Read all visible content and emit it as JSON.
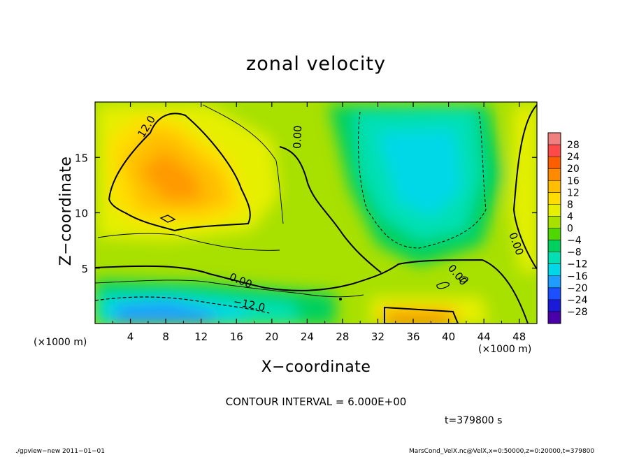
{
  "chart_data": {
    "type": "heatmap",
    "title": "zonal velocity",
    "xlabel": "X−coordinate",
    "ylabel": "Z−coordinate",
    "x_unit": "(×1000 m)",
    "xlim": [
      0,
      50
    ],
    "ylim": [
      0,
      20
    ],
    "x_ticks": [
      "4",
      "8",
      "12",
      "16",
      "20",
      "24",
      "28",
      "32",
      "36",
      "40",
      "44",
      "48"
    ],
    "y_ticks": [
      "5",
      "10",
      "15"
    ],
    "colorbar": {
      "labels": [
        "28",
        "24",
        "20",
        "16",
        "12",
        "8",
        "4",
        "0",
        "−4",
        "−8",
        "−12",
        "−16",
        "−20",
        "−24",
        "−28"
      ],
      "colors": [
        "#f08080",
        "#ff4a4a",
        "#ff5e00",
        "#ff8a00",
        "#ffbe00",
        "#ffdd00",
        "#e6ef00",
        "#a8e000",
        "#4fd800",
        "#00d05e",
        "#00e0b4",
        "#00d8e8",
        "#1e9cff",
        "#1a50ff",
        "#1a1ad8",
        "#4a00a8"
      ]
    },
    "contour_labels": [
      "12.0",
      "0.00",
      "0.00",
      "0.00",
      "0.00",
      "−12.0"
    ],
    "contour_interval_text": "CONTOUR INTERVAL = 6.000E+00",
    "grid": false,
    "colorbar_position": "right"
  },
  "time_text": "t=379800 s",
  "footer": {
    "left": "./gpview−new  2011−01−01",
    "right": "MarsCond_VelX.nc@VelX,x=0:50000,z=0:20000,t=379800"
  },
  "colors": {
    "background": "#ffffff",
    "positive_strong": "#ff8a00",
    "positive_weak": "#a8e000",
    "negative_weak": "#00e0b4",
    "negative_strong": "#1e9cff"
  }
}
